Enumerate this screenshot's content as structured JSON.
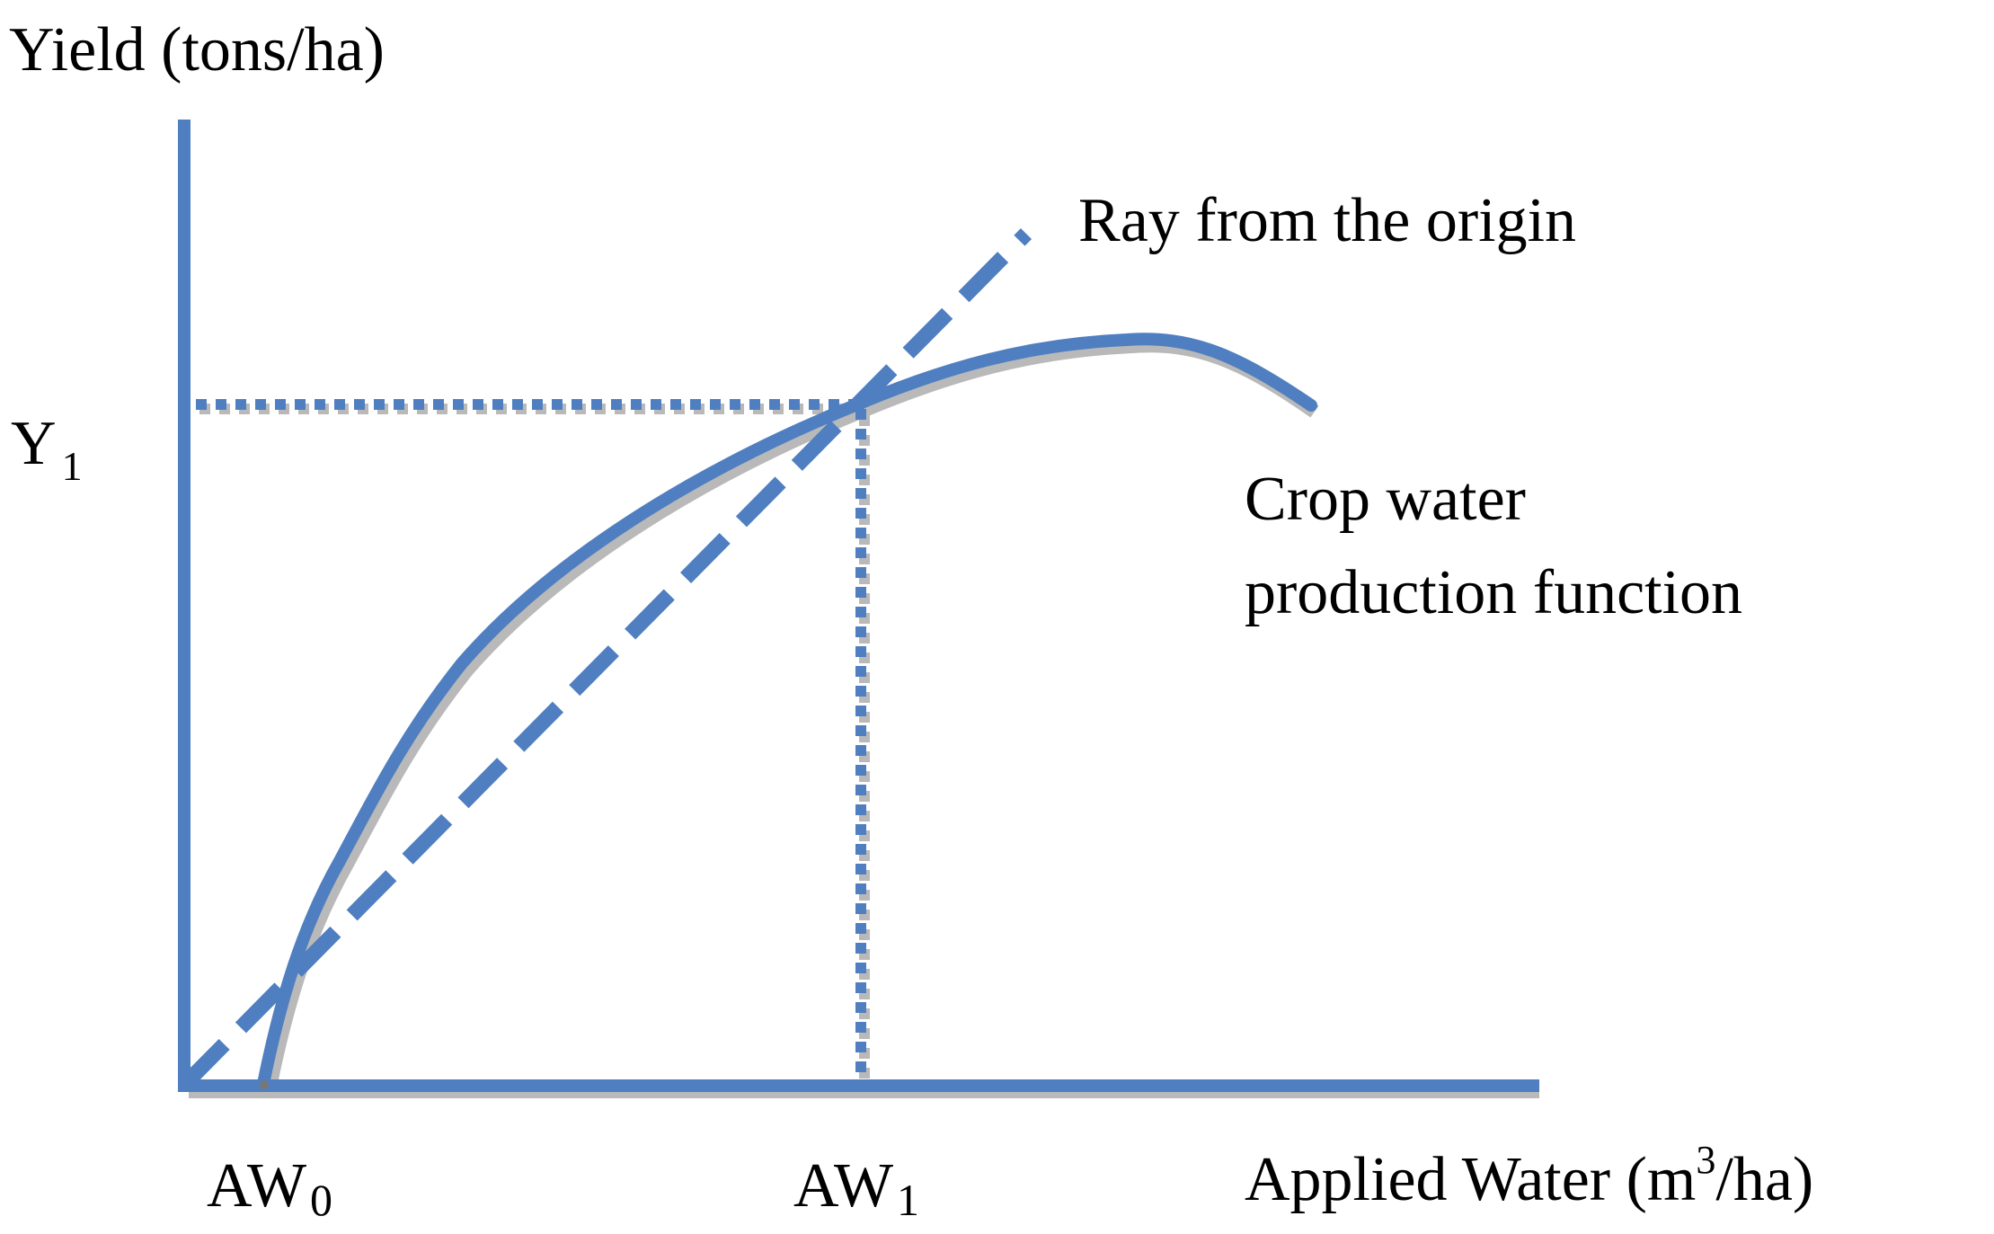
{
  "diagram": {
    "y_axis_label": "Yield (tons/ha)",
    "x_axis_label": "Applied Water (m",
    "x_axis_label_sup": "3",
    "x_axis_label_tail": "/ha)",
    "y1_main": "Y",
    "y1_sub": "1",
    "aw0_main": "AW",
    "aw0_sub": "0",
    "aw1_main": "AW",
    "aw1_sub": "1",
    "ray_label": "Ray from the origin",
    "curve_label_line1": "Crop water",
    "curve_label_line2": "production function",
    "colors": {
      "line": "#4f7fc0",
      "shadow": "#a8a8a8",
      "text": "#000000"
    }
  }
}
